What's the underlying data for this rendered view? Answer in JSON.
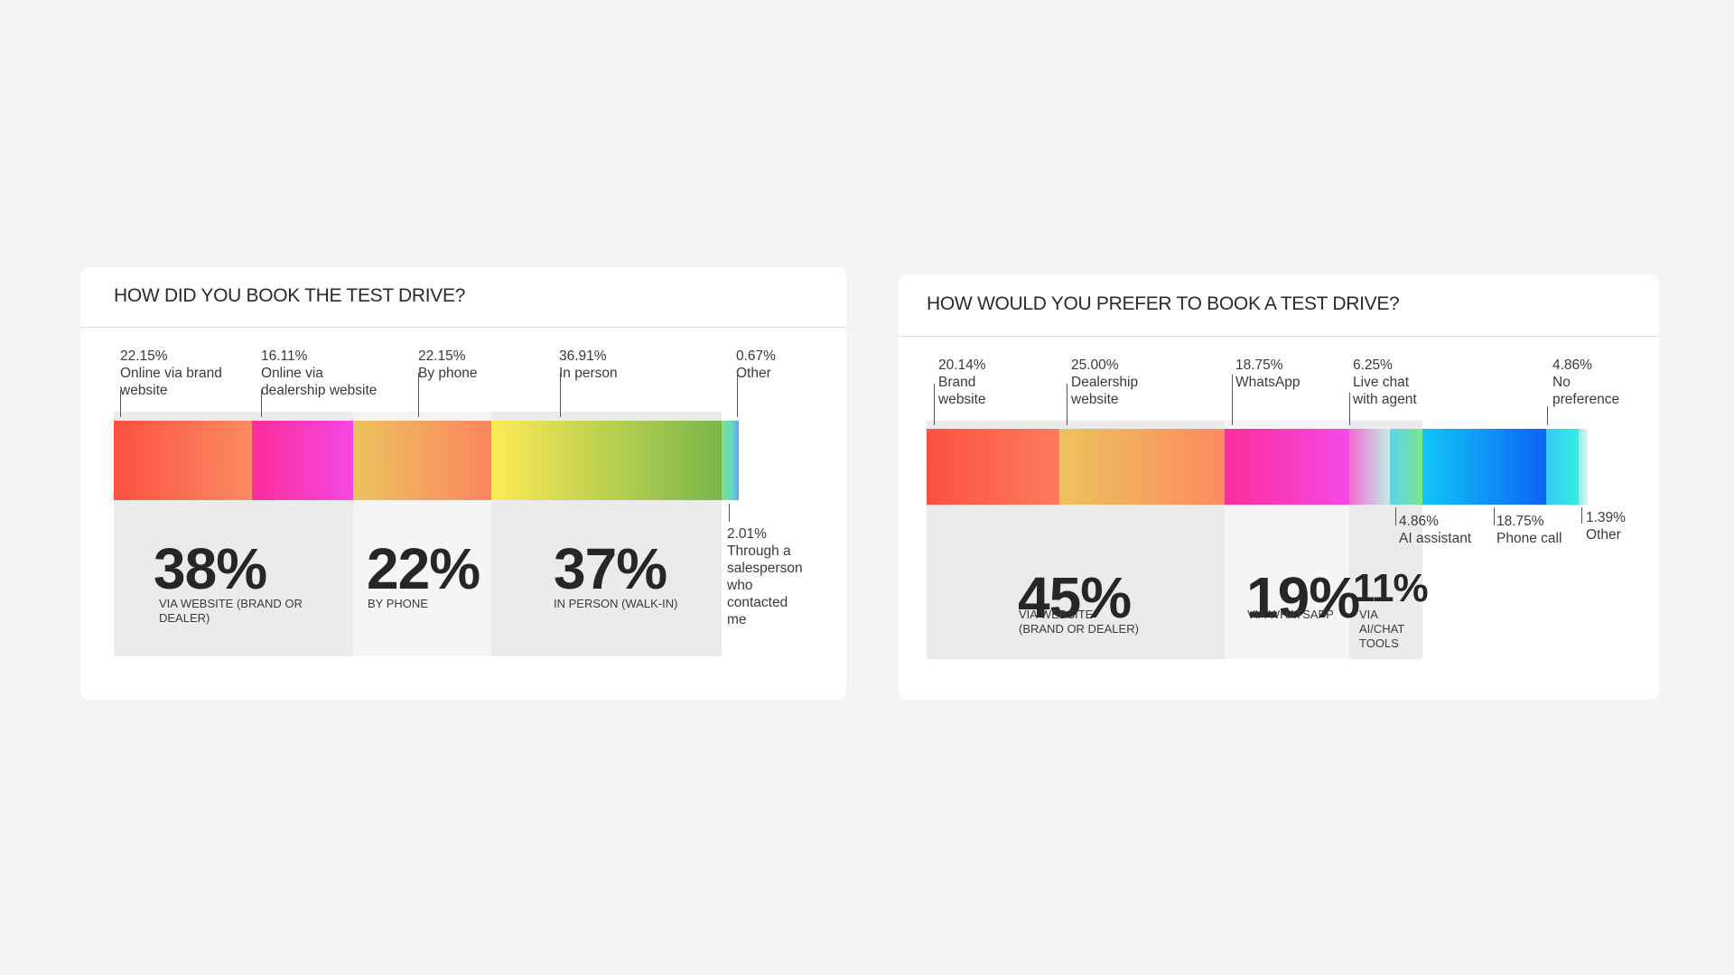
{
  "chart_data": [
    {
      "type": "bar",
      "title": "HOW DID YOU BOOK THE TEST DRIVE?",
      "categories": [
        "Online via brand website",
        "Online via dealership website",
        "By phone",
        "In person",
        "Through a salesperson who contacted me",
        "Other"
      ],
      "values": [
        22.15,
        16.11,
        22.15,
        36.91,
        2.01,
        0.67
      ],
      "segments": [
        {
          "pct": "22.15%",
          "name": "Online via brand\nwebsite",
          "value": 22.15,
          "colors": [
            "#fb5240",
            "#fd8b63"
          ]
        },
        {
          "pct": "16.11%",
          "name": "Online via\ndealership website",
          "value": 16.11,
          "colors": [
            "#fc2d99",
            "#f448e6"
          ]
        },
        {
          "pct": "22.15%",
          "name": "By phone",
          "value": 22.15,
          "colors": [
            "#ecc35d",
            "#fc8560"
          ]
        },
        {
          "pct": "36.91%",
          "name": "In person",
          "value": 36.91,
          "colors": [
            "#fdea55",
            "#79b74b"
          ]
        },
        {
          "pct": "2.01%",
          "name": "Through a\nsalesperson\nwho\ncontacted\nme",
          "value": 2.01,
          "colors": [
            "#86e28c",
            "#55d6ce"
          ]
        },
        {
          "pct": "0.67%",
          "name": "Other",
          "value": 0.67,
          "colors": [
            "#78b7ee",
            "#5aa4ea"
          ]
        }
      ],
      "groups": [
        {
          "big": "38%",
          "sub": "VIA WEBSITE (BRAND OR\nDEALER)"
        },
        {
          "big": "22%",
          "sub": "BY PHONE"
        },
        {
          "big": "37%",
          "sub": "IN PERSON (WALK-IN)"
        }
      ]
    },
    {
      "type": "bar",
      "title": "HOW WOULD YOU PREFER TO BOOK A TEST DRIVE?",
      "categories": [
        "Brand website",
        "Dealership website",
        "WhatsApp",
        "Live chat with agent",
        "AI assistant",
        "Phone call",
        "No preference",
        "Other"
      ],
      "values": [
        20.14,
        25.0,
        18.75,
        6.25,
        4.86,
        18.75,
        4.86,
        1.39
      ],
      "segments": [
        {
          "pct": "20.14%",
          "name": "Brand\nwebsite",
          "value": 20.14,
          "colors": [
            "#fb5240",
            "#fd7b5e"
          ]
        },
        {
          "pct": "25.00%",
          "name": "Dealership\nwebsite",
          "value": 25.0,
          "colors": [
            "#ecc35d",
            "#fd8a60"
          ]
        },
        {
          "pct": "18.75%",
          "name": "WhatsApp",
          "value": 18.75,
          "colors": [
            "#fc2d99",
            "#f44ae8"
          ]
        },
        {
          "pct": "6.25%",
          "name": "Live chat\nwith agent",
          "value": 6.25,
          "colors": [
            "#f36ad6",
            "#c0f0e2"
          ]
        },
        {
          "pct": "4.86%",
          "name": "AI assistant",
          "value": 4.86,
          "colors": [
            "#5cd2ef",
            "#7ae88f"
          ]
        },
        {
          "pct": "18.75%",
          "name": "Phone call",
          "value": 18.75,
          "colors": [
            "#11c7f5",
            "#0b64f6"
          ]
        },
        {
          "pct": "4.86%",
          "name": "No\npreference",
          "value": 4.86,
          "colors": [
            "#37c9f5",
            "#31eee0"
          ]
        },
        {
          "pct": "1.39%",
          "name": "Other",
          "value": 1.39,
          "colors": [
            "#8deee4",
            "#ddf6f4"
          ]
        }
      ],
      "groups": [
        {
          "big": "45%",
          "sub": "VIA WEBSITE\n(BRAND OR DEALER)"
        },
        {
          "big": "19%",
          "sub": "VIA WHATSAPP"
        },
        {
          "big": "11%",
          "sub": "VIA\nAI/CHAT\nTOOLS"
        }
      ]
    }
  ]
}
